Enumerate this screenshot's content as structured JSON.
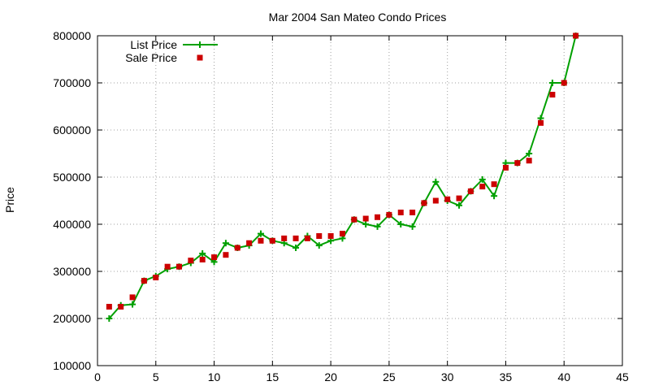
{
  "chart_data": {
    "type": "line",
    "title": "Mar 2004 San Mateo Condo Prices",
    "xlabel": "",
    "ylabel": "Price",
    "xlim": [
      0,
      45
    ],
    "ylim": [
      100000,
      800000
    ],
    "xticks": [
      0,
      5,
      10,
      15,
      20,
      25,
      30,
      35,
      40,
      45
    ],
    "yticks": [
      100000,
      200000,
      300000,
      400000,
      500000,
      600000,
      700000,
      800000
    ],
    "grid": true,
    "legend_position": "top-left",
    "series": [
      {
        "name": "List Price",
        "style": "line-plus",
        "color": "#00a000",
        "x": [
          1,
          2,
          3,
          4,
          5,
          6,
          7,
          8,
          9,
          10,
          11,
          12,
          13,
          14,
          15,
          16,
          17,
          18,
          19,
          20,
          21,
          22,
          23,
          24,
          25,
          26,
          27,
          28,
          29,
          30,
          31,
          32,
          33,
          34,
          35,
          36,
          37,
          38,
          39,
          40,
          41
        ],
        "y": [
          200000,
          228000,
          230000,
          280000,
          290000,
          305000,
          310000,
          318000,
          338000,
          320000,
          360000,
          350000,
          355000,
          380000,
          365000,
          360000,
          350000,
          375000,
          355000,
          365000,
          370000,
          410000,
          400000,
          395000,
          420000,
          400000,
          395000,
          445000,
          490000,
          450000,
          440000,
          470000,
          495000,
          460000,
          530000,
          530000,
          550000,
          625000,
          700000,
          700000,
          800000
        ]
      },
      {
        "name": "Sale Price",
        "style": "square-marker",
        "color": "#cc0000",
        "x": [
          1,
          2,
          3,
          4,
          5,
          6,
          7,
          8,
          9,
          10,
          11,
          12,
          13,
          14,
          15,
          16,
          17,
          18,
          19,
          20,
          21,
          22,
          23,
          24,
          25,
          26,
          27,
          28,
          29,
          30,
          31,
          32,
          33,
          34,
          35,
          36,
          37,
          38,
          39,
          40,
          41
        ],
        "y": [
          225000,
          225000,
          245000,
          280000,
          287000,
          310000,
          310000,
          323000,
          325000,
          330000,
          335000,
          350000,
          360000,
          365000,
          365000,
          370000,
          370000,
          370000,
          375000,
          375000,
          380000,
          410000,
          412000,
          415000,
          420000,
          425000,
          425000,
          445000,
          450000,
          453000,
          455000,
          470000,
          480000,
          485000,
          520000,
          530000,
          535000,
          615000,
          675000,
          700000,
          800000
        ]
      }
    ]
  }
}
